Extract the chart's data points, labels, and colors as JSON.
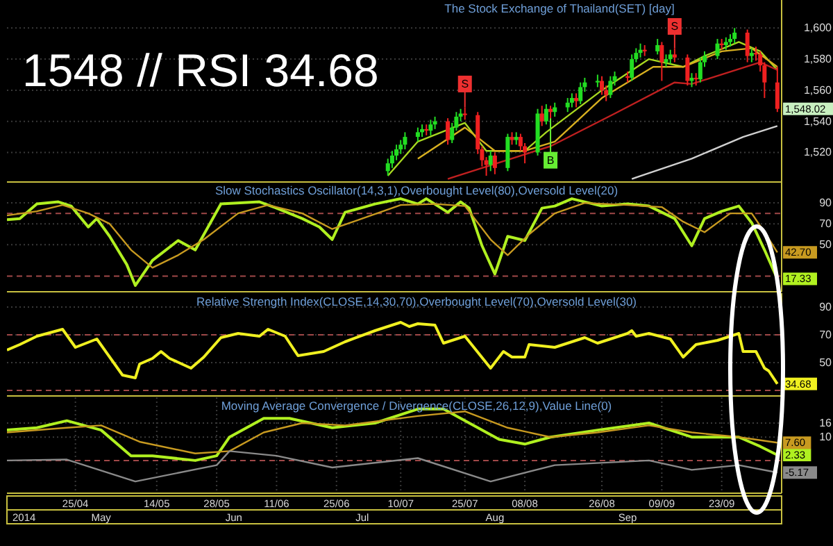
{
  "chart_data": [
    {
      "type": "candlestick",
      "title": "The Stock Exchange of Thailand(SET) [day]",
      "annotations": [
        "1548 // RSI 34.68",
        {
          "text": "S",
          "x": "2014-07-25",
          "y": 1564
        },
        {
          "text": "S",
          "x": "2014-09-12",
          "y": 1601
        },
        {
          "text": "B",
          "x": "2014-08-14",
          "y": 1515
        }
      ],
      "x": [
        "2014-07-07",
        "2014-07-08",
        "2014-07-09",
        "2014-07-10",
        "2014-07-11",
        "2014-07-14",
        "2014-07-15",
        "2014-07-16",
        "2014-07-17",
        "2014-07-18",
        "2014-07-21",
        "2014-07-22",
        "2014-07-23",
        "2014-07-24",
        "2014-07-25",
        "2014-07-28",
        "2014-07-29",
        "2014-07-30",
        "2014-07-31",
        "2014-08-01",
        "2014-08-04",
        "2014-08-05",
        "2014-08-06",
        "2014-08-07",
        "2014-08-08",
        "2014-08-11",
        "2014-08-12",
        "2014-08-13",
        "2014-08-14",
        "2014-08-15",
        "2014-08-18",
        "2014-08-19",
        "2014-08-20",
        "2014-08-21",
        "2014-08-22",
        "2014-08-25",
        "2014-08-26",
        "2014-08-27",
        "2014-08-28",
        "2014-08-29",
        "2014-09-01",
        "2014-09-02",
        "2014-09-03",
        "2014-09-04",
        "2014-09-05",
        "2014-09-08",
        "2014-09-09",
        "2014-09-10",
        "2014-09-11",
        "2014-09-12",
        "2014-09-15",
        "2014-09-16",
        "2014-09-17",
        "2014-09-18",
        "2014-09-19",
        "2014-09-22",
        "2014-09-23",
        "2014-09-24",
        "2014-09-25",
        "2014-09-26",
        "2014-09-29",
        "2014-09-30",
        "2014-10-01",
        "2014-10-02",
        "2014-10-03",
        "2014-10-06"
      ],
      "ohlc": [
        [
          1508,
          1516,
          1505,
          1513
        ],
        [
          1513,
          1521,
          1510,
          1518
        ],
        [
          1518,
          1525,
          1515,
          1522
        ],
        [
          1522,
          1528,
          1519,
          1525
        ],
        [
          1525,
          1533,
          1522,
          1530
        ],
        [
          1530,
          1536,
          1527,
          1533
        ],
        [
          1533,
          1538,
          1530,
          1535
        ],
        [
          1535,
          1538,
          1531,
          1534
        ],
        [
          1534,
          1541,
          1531,
          1538
        ],
        [
          1538,
          1543,
          1535,
          1540
        ],
        [
          1540,
          1542,
          1525,
          1528
        ],
        [
          1528,
          1539,
          1526,
          1536
        ],
        [
          1536,
          1546,
          1534,
          1543
        ],
        [
          1543,
          1548,
          1540,
          1545
        ],
        [
          1545,
          1549,
          1541,
          1544
        ],
        [
          1544,
          1546,
          1519,
          1522
        ],
        [
          1522,
          1524,
          1511,
          1515
        ],
        [
          1515,
          1517,
          1505,
          1512
        ],
        [
          1512,
          1521,
          1508,
          1518
        ],
        [
          1518,
          1520,
          1506,
          1510
        ],
        [
          1510,
          1532,
          1508,
          1530
        ],
        [
          1530,
          1533,
          1525,
          1528
        ],
        [
          1528,
          1533,
          1525,
          1530
        ],
        [
          1530,
          1532,
          1521,
          1524
        ],
        [
          1524,
          1526,
          1513,
          1520
        ],
        [
          1520,
          1548,
          1518,
          1545
        ],
        [
          1545,
          1550,
          1537,
          1540
        ],
        [
          1540,
          1551,
          1538,
          1548
        ],
        [
          1548,
          1550,
          1542,
          1546
        ],
        [
          1546,
          1552,
          1543,
          1549
        ],
        [
          1549,
          1555,
          1546,
          1552
        ],
        [
          1552,
          1558,
          1549,
          1555
        ],
        [
          1555,
          1558,
          1549,
          1553
        ],
        [
          1553,
          1565,
          1551,
          1562
        ],
        [
          1562,
          1568,
          1559,
          1565
        ],
        [
          1565,
          1570,
          1562,
          1566
        ],
        [
          1566,
          1569,
          1557,
          1560
        ],
        [
          1560,
          1563,
          1553,
          1557
        ],
        [
          1557,
          1569,
          1555,
          1566
        ],
        [
          1566,
          1572,
          1563,
          1569
        ],
        [
          1569,
          1572,
          1565,
          1568
        ],
        [
          1568,
          1583,
          1566,
          1580
        ],
        [
          1580,
          1587,
          1578,
          1584
        ],
        [
          1584,
          1590,
          1581,
          1586
        ],
        [
          1586,
          1589,
          1582,
          1585
        ],
        [
          1585,
          1593,
          1583,
          1589
        ],
        [
          1589,
          1591,
          1566,
          1578
        ],
        [
          1578,
          1583,
          1575,
          1580
        ],
        [
          1580,
          1586,
          1577,
          1583
        ],
        [
          1583,
          1587,
          1578,
          1581
        ],
        [
          1581,
          1583,
          1563,
          1566
        ],
        [
          1566,
          1571,
          1562,
          1568
        ],
        [
          1568,
          1571,
          1563,
          1567
        ],
        [
          1567,
          1581,
          1565,
          1578
        ],
        [
          1578,
          1585,
          1575,
          1582
        ],
        [
          1582,
          1593,
          1580,
          1590
        ],
        [
          1590,
          1593,
          1586,
          1589
        ],
        [
          1589,
          1594,
          1586,
          1591
        ],
        [
          1591,
          1596,
          1588,
          1593
        ],
        [
          1593,
          1600,
          1590,
          1597
        ],
        [
          1597,
          1599,
          1578,
          1582
        ],
        [
          1582,
          1587,
          1578,
          1584
        ],
        [
          1584,
          1588,
          1579,
          1583
        ],
        [
          1583,
          1585,
          1572,
          1576
        ],
        [
          1576,
          1578,
          1555,
          1565
        ],
        [
          1565,
          1575,
          1546,
          1548.02
        ]
      ],
      "value_labels": [
        null,
        null,
        null,
        null,
        null,
        null,
        null,
        null,
        null,
        null,
        null,
        null,
        null,
        null,
        null,
        null,
        null,
        null,
        null,
        null,
        null,
        null,
        null,
        null,
        null,
        null,
        null,
        null,
        null,
        null,
        null,
        null,
        null,
        null,
        null,
        null,
        null,
        null,
        null,
        null,
        null,
        null,
        null,
        null,
        null,
        null,
        null,
        null,
        null,
        null,
        null,
        null,
        null,
        null,
        null,
        null,
        null,
        null,
        null,
        null,
        null,
        null,
        null,
        null,
        null,
        "1,548.02"
      ],
      "series": [
        {
          "type": "line",
          "color": "#a8d820",
          "x": [
            "2014-07-07",
            "2014-07-14",
            "2014-07-25",
            "2014-07-30",
            "2014-08-08",
            "2014-08-13",
            "2014-08-26",
            "2014-09-06",
            "2014-09-14",
            "2014-09-19",
            "2014-09-27",
            "2014-10-02",
            "2014-10-06"
          ],
          "values": [
            1505,
            1527,
            1539,
            1521,
            1521,
            1533,
            1560,
            1580,
            1575,
            1582,
            1591,
            1585,
            1573
          ]
        },
        {
          "type": "line",
          "color": "#d8b020",
          "x": [
            "2014-07-14",
            "2014-07-25",
            "2014-08-01",
            "2014-08-08",
            "2014-08-15",
            "2014-08-26",
            "2014-09-07",
            "2014-09-14",
            "2014-09-23",
            "2014-09-30",
            "2014-10-06"
          ],
          "values": [
            1516,
            1536,
            1521,
            1521,
            1527,
            1555,
            1575,
            1575,
            1585,
            1587,
            1575
          ]
        },
        {
          "type": "line",
          "color": "#c02020",
          "x": [
            "2014-07-21",
            "2014-08-14",
            "2014-08-29",
            "2014-09-12",
            "2014-09-16",
            "2014-10-02",
            "2014-10-06"
          ],
          "values": [
            1503,
            1524,
            1545,
            1565,
            1564,
            1578,
            1573
          ]
        },
        {
          "type": "line",
          "color": "#d0d0d0",
          "x": [
            "2014-09-02",
            "2014-09-16",
            "2014-09-28",
            "2014-10-06"
          ],
          "values": [
            1503,
            1516,
            1530,
            1537
          ]
        }
      ],
      "xlim": [
        "2014-04-09",
        "2014-10-07"
      ],
      "ylim": [
        1501,
        1618
      ],
      "yticks": [
        {
          "value": 1520,
          "label": "1,520"
        },
        {
          "value": 1540,
          "label": "1,540"
        },
        {
          "value": 1560,
          "label": "1,560"
        },
        {
          "value": 1580,
          "label": "1,580"
        },
        {
          "value": 1600,
          "label": "1,600"
        }
      ],
      "grid": "y",
      "tick_labels": "y"
    },
    {
      "type": "line",
      "title": "Slow Stochastics Oscillator(14,3,1),Overbought Level(80),Oversold Level(20)",
      "series": [
        {
          "color": "#b0f020",
          "x": [
            "2014-04-09",
            "2014-04-12",
            "2014-04-16",
            "2014-04-21",
            "2014-04-24",
            "2014-04-28",
            "2014-04-30",
            "2014-05-03",
            "2014-05-07",
            "2014-05-09",
            "2014-05-13",
            "2014-05-19",
            "2014-05-23",
            "2014-05-29",
            "2014-06-07",
            "2014-06-11",
            "2014-06-17",
            "2014-06-21",
            "2014-06-24",
            "2014-06-27",
            "2014-07-04",
            "2014-07-10",
            "2014-07-14",
            "2014-07-16",
            "2014-07-21",
            "2014-07-24",
            "2014-07-26",
            "2014-07-29",
            "2014-08-01",
            "2014-08-04",
            "2014-08-08",
            "2014-08-12",
            "2014-08-15",
            "2014-08-19",
            "2014-08-26",
            "2014-09-01",
            "2014-09-06",
            "2014-09-12",
            "2014-09-16",
            "2014-09-19",
            "2014-09-23",
            "2014-09-27",
            "2014-09-30",
            "2014-10-03",
            "2014-10-06"
          ],
          "values": [
            74,
            75,
            89,
            91,
            87,
            67,
            75,
            58,
            31,
            11,
            35,
            54,
            45,
            89,
            91,
            85,
            75,
            67,
            55,
            81,
            89,
            94,
            89,
            94,
            81,
            91,
            85,
            49,
            22,
            58,
            54,
            85,
            87,
            94,
            87,
            89,
            87,
            75,
            49,
            75,
            82,
            87,
            71,
            45,
            17.33
          ],
          "value_labels": [
            null,
            null,
            null,
            null,
            null,
            null,
            null,
            null,
            null,
            null,
            null,
            null,
            null,
            null,
            null,
            null,
            null,
            null,
            null,
            null,
            null,
            null,
            null,
            null,
            null,
            null,
            null,
            null,
            null,
            null,
            null,
            null,
            null,
            null,
            null,
            null,
            null,
            null,
            null,
            null,
            null,
            null,
            null,
            null,
            "17.33"
          ]
        },
        {
          "color": "#c89a20",
          "x": [
            "2014-04-09",
            "2014-04-16",
            "2014-04-22",
            "2014-04-28",
            "2014-05-03",
            "2014-05-08",
            "2014-05-13",
            "2014-05-19",
            "2014-05-25",
            "2014-06-02",
            "2014-06-09",
            "2014-06-17",
            "2014-06-24",
            "2014-07-01",
            "2014-07-10",
            "2014-07-18",
            "2014-07-25",
            "2014-07-31",
            "2014-08-04",
            "2014-08-09",
            "2014-08-15",
            "2014-08-22",
            "2014-09-01",
            "2014-09-09",
            "2014-09-14",
            "2014-09-19",
            "2014-09-25",
            "2014-09-30",
            "2014-10-03",
            "2014-10-06"
          ],
          "values": [
            78,
            82,
            88,
            80,
            70,
            45,
            28,
            40,
            55,
            80,
            88,
            80,
            65,
            75,
            88,
            89,
            87,
            55,
            40,
            60,
            80,
            90,
            88,
            86,
            72,
            62,
            80,
            80,
            62,
            42.7
          ],
          "value_labels": [
            null,
            null,
            null,
            null,
            null,
            null,
            null,
            null,
            null,
            null,
            null,
            null,
            null,
            null,
            null,
            null,
            null,
            null,
            null,
            null,
            null,
            null,
            null,
            null,
            null,
            null,
            null,
            null,
            null,
            "42.70"
          ]
        }
      ],
      "ref_lines": [
        {
          "axis": "y",
          "value": 80,
          "color": "#a04848",
          "line_style": "dashed"
        },
        {
          "axis": "y",
          "value": 20,
          "color": "#a04848",
          "line_style": "dashed"
        }
      ],
      "xlim": [
        "2014-04-09",
        "2014-10-07"
      ],
      "ylim": [
        5,
        110
      ],
      "yticks": [
        50,
        70,
        90
      ],
      "grid": "y",
      "tick_labels": "y"
    },
    {
      "type": "line",
      "title": "Relative Strength Index(CLOSE,14,30,70),Overbought Level(70),Oversold Level(30)",
      "series": [
        {
          "color": "#f0f020",
          "x": [
            "2014-04-09",
            "2014-04-12",
            "2014-04-16",
            "2014-04-22",
            "2014-04-25",
            "2014-04-30",
            "2014-05-03",
            "2014-05-06",
            "2014-05-09",
            "2014-05-10",
            "2014-05-13",
            "2014-05-15",
            "2014-05-17",
            "2014-05-22",
            "2014-05-25",
            "2014-05-29",
            "2014-06-02",
            "2014-06-07",
            "2014-06-09",
            "2014-06-13",
            "2014-06-16",
            "2014-06-22",
            "2014-06-27",
            "2014-07-04",
            "2014-07-10",
            "2014-07-12",
            "2014-07-14",
            "2014-07-18",
            "2014-07-20",
            "2014-07-25",
            "2014-07-31",
            "2014-08-03",
            "2014-08-05",
            "2014-08-08",
            "2014-08-09",
            "2014-08-15",
            "2014-08-22",
            "2014-08-25",
            "2014-09-01",
            "2014-09-02",
            "2014-09-03",
            "2014-09-06",
            "2014-09-11",
            "2014-09-14",
            "2014-09-17",
            "2014-09-22",
            "2014-09-27",
            "2014-09-28",
            "2014-10-01",
            "2014-10-03",
            "2014-10-04",
            "2014-10-06"
          ],
          "values": [
            59,
            63,
            69,
            74,
            61,
            67,
            54,
            41,
            39,
            49,
            53,
            58,
            53,
            46,
            54,
            68,
            71,
            69,
            74,
            69,
            55,
            58,
            65,
            73,
            79,
            76,
            78,
            77,
            64,
            69,
            46,
            58,
            54,
            54,
            63,
            61,
            68,
            64,
            71,
            73,
            69,
            71,
            67,
            54,
            63,
            66,
            71,
            58,
            58,
            46,
            44,
            34.68
          ],
          "value_labels": [
            null,
            null,
            null,
            null,
            null,
            null,
            null,
            null,
            null,
            null,
            null,
            null,
            null,
            null,
            null,
            null,
            null,
            null,
            null,
            null,
            null,
            null,
            null,
            null,
            null,
            null,
            null,
            null,
            null,
            null,
            null,
            null,
            null,
            null,
            null,
            null,
            null,
            null,
            null,
            null,
            null,
            null,
            null,
            null,
            null,
            null,
            null,
            null,
            null,
            null,
            null,
            "34.68"
          ]
        }
      ],
      "ref_lines": [
        {
          "axis": "y",
          "value": 70,
          "color": "#a04848",
          "line_style": "dashed"
        },
        {
          "axis": "y",
          "value": 30,
          "color": "#a04848",
          "line_style": "dashed"
        }
      ],
      "xlim": [
        "2014-04-09",
        "2014-10-07"
      ],
      "ylim": [
        26,
        100
      ],
      "yticks": [
        50,
        70,
        90
      ],
      "grid": "y",
      "tick_labels": "y"
    },
    {
      "type": "line",
      "title": "Moving Average Convergence / Divergence(CLOSE,26,12,9),Value Line(0)",
      "series": [
        {
          "color": "#b0f020",
          "x": [
            "2014-04-09",
            "2014-04-16",
            "2014-04-23",
            "2014-05-01",
            "2014-05-08",
            "2014-05-13",
            "2014-05-23",
            "2014-05-28",
            "2014-05-31",
            "2014-06-08",
            "2014-06-14",
            "2014-06-24",
            "2014-07-04",
            "2014-07-14",
            "2014-07-20",
            "2014-08-02",
            "2014-08-08",
            "2014-08-14",
            "2014-08-25",
            "2014-09-06",
            "2014-09-16",
            "2014-09-27",
            "2014-10-02",
            "2014-10-06"
          ],
          "values": [
            13,
            14,
            17,
            13,
            2,
            2,
            0,
            2,
            10,
            18,
            18,
            14,
            16,
            22,
            22,
            9,
            7,
            10,
            13,
            16,
            10,
            10,
            6,
            2.33
          ],
          "value_labels": [
            null,
            null,
            null,
            null,
            null,
            null,
            null,
            null,
            null,
            null,
            null,
            null,
            null,
            null,
            null,
            null,
            null,
            null,
            null,
            null,
            null,
            null,
            null,
            "2.33"
          ]
        },
        {
          "color": "#c89a20",
          "x": [
            "2014-04-09",
            "2014-04-23",
            "2014-05-01",
            "2014-05-10",
            "2014-05-23",
            "2014-05-31",
            "2014-06-08",
            "2014-06-17",
            "2014-06-27",
            "2014-07-14",
            "2014-07-25",
            "2014-08-04",
            "2014-08-14",
            "2014-08-25",
            "2014-09-06",
            "2014-09-16",
            "2014-09-27",
            "2014-10-06"
          ],
          "values": [
            12,
            14,
            15,
            8,
            3,
            4,
            12,
            16,
            15,
            19,
            21,
            14,
            10,
            12,
            15,
            12,
            10,
            7.6
          ],
          "value_labels": [
            null,
            null,
            null,
            null,
            null,
            null,
            null,
            null,
            null,
            null,
            null,
            null,
            null,
            null,
            null,
            null,
            null,
            "7.60"
          ]
        },
        {
          "color": "#8a8a8a",
          "x": [
            "2014-04-09",
            "2014-04-23",
            "2014-05-09",
            "2014-05-28",
            "2014-05-31",
            "2014-06-11",
            "2014-06-24",
            "2014-07-14",
            "2014-07-31",
            "2014-08-15",
            "2014-09-06",
            "2014-09-16",
            "2014-09-27",
            "2014-10-06"
          ],
          "values": [
            0,
            0.4,
            -9,
            -2,
            4,
            2,
            -3,
            1,
            -9,
            -2,
            0,
            -4,
            -2,
            -5.17
          ],
          "value_labels": [
            null,
            null,
            null,
            null,
            null,
            null,
            null,
            null,
            null,
            null,
            null,
            null,
            null,
            "-5.17"
          ]
        }
      ],
      "ref_lines": [
        {
          "axis": "y",
          "value": 0,
          "color": "#a04848",
          "line_style": "dashed"
        }
      ],
      "xlim": [
        "2014-04-09",
        "2014-10-07"
      ],
      "xticks": [
        {
          "value": "2014-04-25",
          "label": "25/04"
        },
        {
          "value": "2014-05-14",
          "label": "14/05"
        },
        {
          "value": "2014-05-28",
          "label": "28/05"
        },
        {
          "value": "2014-06-11",
          "label": "11/06"
        },
        {
          "value": "2014-06-25",
          "label": "25/06"
        },
        {
          "value": "2014-07-10",
          "label": "10/07"
        },
        {
          "value": "2014-07-25",
          "label": "25/07"
        },
        {
          "value": "2014-08-08",
          "label": "08/08"
        },
        {
          "value": "2014-08-26",
          "label": "26/08"
        },
        {
          "value": "2014-09-09",
          "label": "09/09"
        },
        {
          "value": "2014-09-23",
          "label": "23/09"
        }
      ],
      "x2lim": [
        "2014-04-09",
        "2014-10-07"
      ],
      "x2ticks": [
        {
          "value": "2014-04-13",
          "label": "2014"
        },
        {
          "value": "2014-05-01",
          "label": "May"
        },
        {
          "value": "2014-06-01",
          "label": "Jun"
        },
        {
          "value": "2014-07-01",
          "label": "Jul"
        },
        {
          "value": "2014-08-01",
          "label": "Aug"
        },
        {
          "value": "2014-09-01",
          "label": "Sep"
        }
      ],
      "ylim": [
        -14,
        27
      ],
      "yticks": [
        10,
        16
      ],
      "grid": true
    }
  ]
}
